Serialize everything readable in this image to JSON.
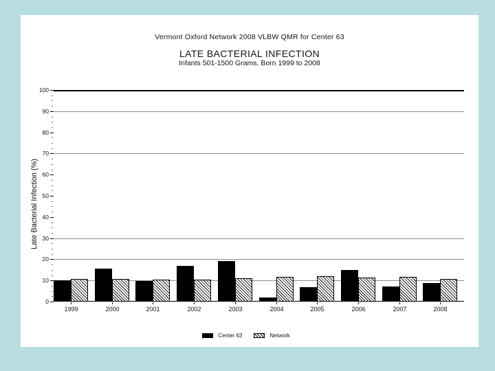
{
  "colors": {
    "background": "#b8dee2",
    "slide": "#ffffff",
    "gridline": "#8c8c8c",
    "center_bar": "#000000",
    "network_bar_pattern": "black-diagonal-hatch-on-white"
  },
  "header": {
    "title": "Vermont Oxford Network 2008 VLBW QMR for Center 63"
  },
  "chart_data": {
    "type": "bar",
    "title": "LATE BACTERIAL INFECTION",
    "subtitle": "Infants 501-1500 Grams, Born 1999 to 2008",
    "ylabel": "Late Bacterial Infection (%)",
    "xlabel": "",
    "ylim": [
      0,
      100
    ],
    "yticks": [
      0,
      10,
      20,
      30,
      40,
      50,
      60,
      70,
      80,
      90,
      100
    ],
    "minor_tick_step": 2.5,
    "gridline_values": [
      10,
      20,
      30,
      70,
      90
    ],
    "grid": "partial-horizontal",
    "categories": [
      "1999",
      "2000",
      "2001",
      "2002",
      "2003",
      "2004",
      "2005",
      "2006",
      "2007",
      "2008"
    ],
    "series": [
      {
        "name": "Center 63",
        "style": "solid-black",
        "values": [
          10.0,
          15.5,
          9.8,
          16.8,
          19.0,
          1.8,
          6.9,
          14.8,
          7.0,
          8.7
        ]
      },
      {
        "name": "Network",
        "style": "diagonal-hatch",
        "values": [
          10.7,
          10.7,
          10.5,
          10.5,
          11.0,
          11.7,
          12.0,
          11.5,
          11.7,
          10.7
        ]
      }
    ],
    "legend_position": "bottom-center"
  }
}
